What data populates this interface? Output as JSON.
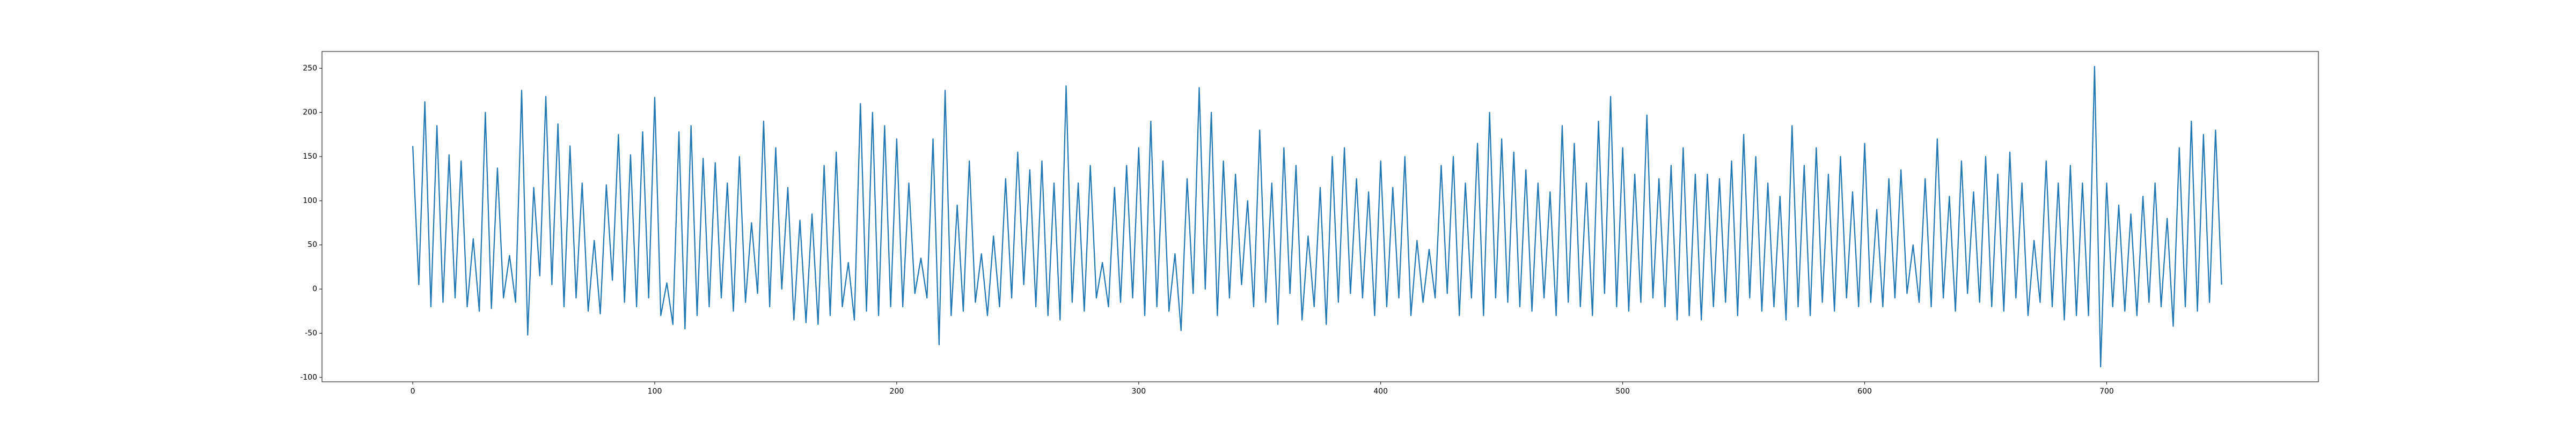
{
  "chart_data": {
    "type": "line",
    "x": [
      0,
      2.5,
      5,
      7.5,
      10,
      12.5,
      15,
      17.5,
      20,
      22.5,
      25,
      27.5,
      30,
      32.5,
      35,
      37.5,
      40,
      42.5,
      45,
      47.5,
      50,
      52.5,
      55,
      57.5,
      60,
      62.5,
      65,
      67.5,
      70,
      72.5,
      75,
      77.5,
      80,
      82.5,
      85,
      87.5,
      90,
      92.5,
      95,
      97.5,
      100,
      102.5,
      105,
      107.5,
      110,
      112.5,
      115,
      117.5,
      120,
      122.5,
      125,
      127.5,
      130,
      132.5,
      135,
      137.5,
      140,
      142.5,
      145,
      147.5,
      150,
      152.5,
      155,
      157.5,
      160,
      162.5,
      165,
      167.5,
      170,
      172.5,
      175,
      177.5,
      180,
      182.5,
      185,
      187.5,
      190,
      192.5,
      195,
      197.5,
      200,
      202.5,
      205,
      207.5,
      210,
      212.5,
      215,
      217.5,
      220,
      222.5,
      225,
      227.5,
      230,
      232.5,
      235,
      237.5,
      240,
      242.5,
      245,
      247.5,
      250,
      252.5,
      255,
      257.5,
      260,
      262.5,
      265,
      267.5,
      270,
      272.5,
      275,
      277.5,
      280,
      282.5,
      285,
      287.5,
      290,
      292.5,
      295,
      297.5,
      300,
      302.5,
      305,
      307.5,
      310,
      312.5,
      315,
      317.5,
      320,
      322.5,
      325,
      327.5,
      330,
      332.5,
      335,
      337.5,
      340,
      342.5,
      345,
      347.5,
      350,
      352.5,
      355,
      357.5,
      360,
      362.5,
      365,
      367.5,
      370,
      372.5,
      375,
      377.5,
      380,
      382.5,
      385,
      387.5,
      390,
      392.5,
      395,
      397.5,
      400,
      402.5,
      405,
      407.5,
      410,
      412.5,
      415,
      417.5,
      420,
      422.5,
      425,
      427.5,
      430,
      432.5,
      435,
      437.5,
      440,
      442.5,
      445,
      447.5,
      450,
      452.5,
      455,
      457.5,
      460,
      462.5,
      465,
      467.5,
      470,
      472.5,
      475,
      477.5,
      480,
      482.5,
      485,
      487.5,
      490,
      492.5,
      495,
      497.5,
      500,
      502.5,
      505,
      507.5,
      510,
      512.5,
      515,
      517.5,
      520,
      522.5,
      525,
      527.5,
      530,
      532.5,
      535,
      537.5,
      540,
      542.5,
      545,
      547.5,
      550,
      552.5,
      555,
      557.5,
      560,
      562.5,
      565,
      567.5,
      570,
      572.5,
      575,
      577.5,
      580,
      582.5,
      585,
      587.5,
      590,
      592.5,
      595,
      597.5,
      600,
      602.5,
      605,
      607.5,
      610,
      612.5,
      615,
      617.5,
      620,
      622.5,
      625,
      627.5,
      630,
      632.5,
      635,
      637.5,
      640,
      642.5,
      645,
      647.5,
      650,
      652.5,
      655,
      657.5,
      660,
      662.5,
      665,
      667.5,
      670,
      672.5,
      675,
      677.5,
      680,
      682.5,
      685,
      687.5,
      690,
      692.5,
      695,
      697.5,
      700,
      702.5,
      705,
      707.5,
      710,
      712.5,
      715,
      717.5,
      720,
      722.5,
      725,
      727.5,
      730,
      732.5,
      735,
      737.5,
      740,
      742.5,
      745,
      747.5
    ],
    "series": [
      {
        "color": "#1f77b4",
        "values": [
          162,
          5,
          212,
          -20,
          185,
          -15,
          152,
          -10,
          145,
          -20,
          57,
          -25,
          200,
          -22,
          137,
          -10,
          38,
          -15,
          225,
          -52,
          115,
          15,
          218,
          5,
          187,
          -20,
          162,
          -10,
          120,
          -25,
          55,
          -28,
          118,
          10,
          175,
          -15,
          152,
          -20,
          178,
          -10,
          217,
          -30,
          7,
          -40,
          178,
          -45,
          185,
          -30,
          148,
          -20,
          143,
          -10,
          120,
          -25,
          150,
          -15,
          75,
          -5,
          190,
          -20,
          160,
          0,
          115,
          -35,
          78,
          -38,
          85,
          -40,
          140,
          -30,
          155,
          -20,
          30,
          -35,
          210,
          -25,
          200,
          -30,
          185,
          -20,
          170,
          -20,
          120,
          -5,
          35,
          -10,
          170,
          -63,
          225,
          -30,
          95,
          -25,
          145,
          -15,
          40,
          -30,
          60,
          -20,
          125,
          -10,
          155,
          5,
          135,
          -20,
          145,
          -30,
          120,
          -35,
          230,
          -15,
          120,
          -25,
          140,
          -10,
          30,
          -20,
          115,
          -15,
          140,
          -10,
          160,
          -30,
          190,
          -20,
          145,
          -25,
          40,
          -47,
          125,
          -5,
          228,
          0,
          200,
          -30,
          145,
          -10,
          130,
          5,
          100,
          -20,
          180,
          -15,
          120,
          -40,
          160,
          -5,
          140,
          -35,
          60,
          -20,
          115,
          -40,
          150,
          -15,
          160,
          -5,
          125,
          -10,
          110,
          -30,
          145,
          -20,
          115,
          -10,
          150,
          -30,
          55,
          -15,
          45,
          -10,
          140,
          -5,
          150,
          -30,
          120,
          -10,
          165,
          -30,
          200,
          -10,
          170,
          -15,
          155,
          -20,
          135,
          -25,
          120,
          -10,
          110,
          -30,
          185,
          -15,
          165,
          -20,
          120,
          -30,
          190,
          -5,
          218,
          -20,
          160,
          -25,
          130,
          -15,
          197,
          -10,
          125,
          -20,
          140,
          -35,
          160,
          -30,
          130,
          -35,
          130,
          -20,
          125,
          -15,
          145,
          -30,
          175,
          -10,
          150,
          -25,
          120,
          -20,
          105,
          -35,
          185,
          -20,
          140,
          -30,
          160,
          -15,
          130,
          -25,
          150,
          -10,
          110,
          -20,
          165,
          -15,
          90,
          -20,
          125,
          -10,
          135,
          -5,
          50,
          -15,
          125,
          -20,
          170,
          -10,
          105,
          -25,
          145,
          -5,
          110,
          -15,
          150,
          -20,
          130,
          -25,
          155,
          -10,
          120,
          -30,
          55,
          -15,
          145,
          -20,
          120,
          -35,
          140,
          -30,
          120,
          -30,
          252,
          -88,
          120,
          -20,
          95,
          -25,
          85,
          -30,
          105,
          -15,
          120,
          -20,
          80,
          -42,
          160,
          -20,
          190,
          -25,
          175,
          -15,
          180,
          5
        ]
      }
    ],
    "xlim": [
      -37.5,
      787.5
    ],
    "xticks": [
      0,
      100,
      200,
      300,
      400,
      500,
      600,
      700
    ],
    "ylim": [
      -105,
      269
    ],
    "yticks": [
      -100,
      -50,
      0,
      50,
      100,
      150,
      200,
      250
    ]
  }
}
